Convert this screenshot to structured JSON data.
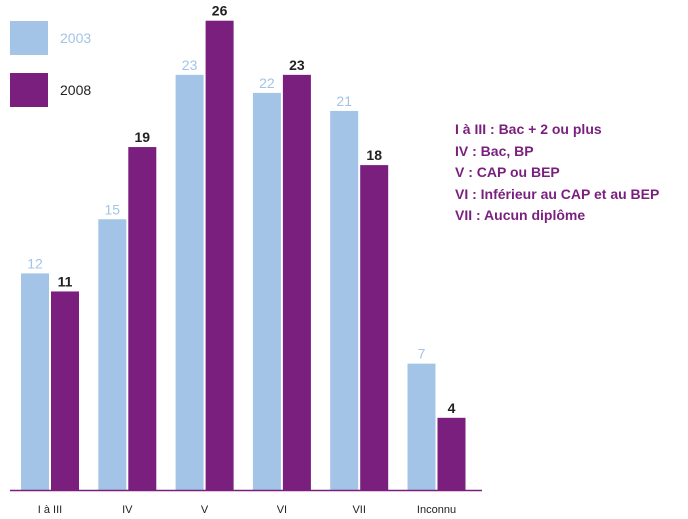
{
  "colors": {
    "series_2003": "#a3c4e6",
    "series_2008": "#7a1f7e",
    "axis": "#7a1f7e"
  },
  "legend": [
    {
      "label": "2003"
    },
    {
      "label": "2008"
    }
  ],
  "notes": [
    "I à III : Bac + 2 ou plus",
    "IV : Bac, BP",
    "V : CAP ou BEP",
    "VI : Inférieur au CAP et au BEP",
    "VII : Aucun diplôme"
  ],
  "chart_data": {
    "type": "bar",
    "categories": [
      "I à III",
      "IV",
      "V",
      "VI",
      "VII",
      "Inconnu"
    ],
    "series": [
      {
        "name": "2003",
        "values": [
          12,
          15,
          23,
          22,
          21,
          7
        ]
      },
      {
        "name": "2008",
        "values": [
          11,
          19,
          26,
          23,
          18,
          4
        ]
      }
    ],
    "title": "",
    "xlabel": "",
    "ylabel": "",
    "ylim": [
      0,
      26
    ],
    "grid": false,
    "legend_position": "top-left"
  }
}
